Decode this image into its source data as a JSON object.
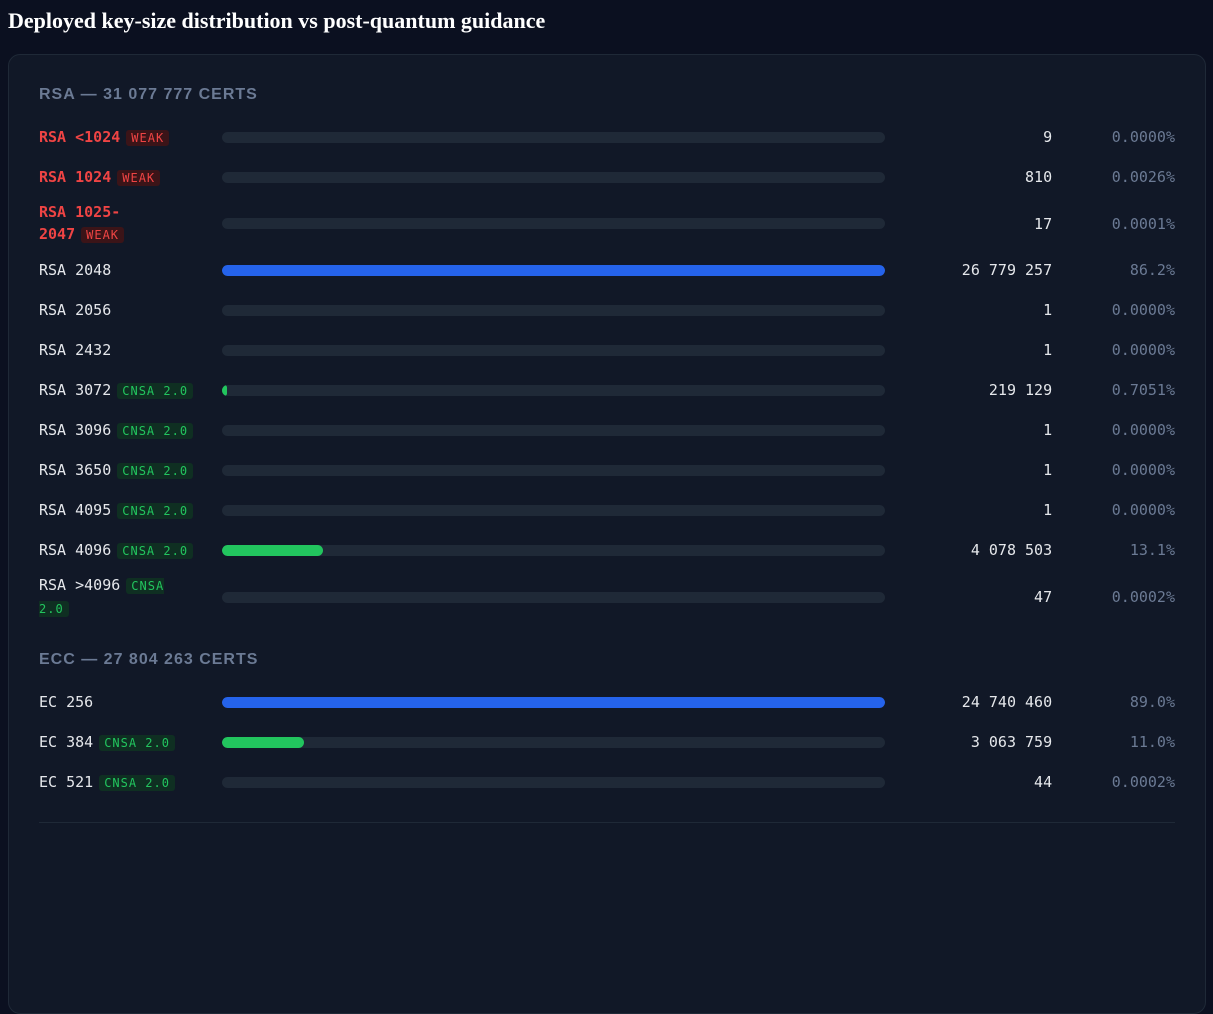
{
  "title": "Deployed key-size distribution vs post-quantum guidance",
  "sections": [
    {
      "heading": "RSA — 31 077 777 CERTS",
      "rows": [
        {
          "label": "RSA <1024",
          "badge": "WEAK",
          "count": 9,
          "count_label": "9",
          "percent": "0.0000%"
        },
        {
          "label": "RSA 1024",
          "badge": "WEAK",
          "count": 810,
          "count_label": "810",
          "percent": "0.0026%"
        },
        {
          "label": "RSA 1025-2047",
          "badge": "WEAK",
          "count": 17,
          "count_label": "17",
          "percent": "0.0001%"
        },
        {
          "label": "RSA 2048",
          "count": 26779257,
          "count_label": "26 779 257",
          "percent": "86.2%",
          "color": "#2563eb"
        },
        {
          "label": "RSA 2056",
          "count": 1,
          "count_label": "1",
          "percent": "0.0000%"
        },
        {
          "label": "RSA 2432",
          "count": 1,
          "count_label": "1",
          "percent": "0.0000%"
        },
        {
          "label": "RSA 3072",
          "badge": "CNSA 2.0",
          "count": 219129,
          "count_label": "219 129",
          "percent": "0.7051%",
          "color": "#22c55e"
        },
        {
          "label": "RSA 3096",
          "badge": "CNSA 2.0",
          "count": 1,
          "count_label": "1",
          "percent": "0.0000%",
          "color": "#22c55e"
        },
        {
          "label": "RSA 3650",
          "badge": "CNSA 2.0",
          "count": 1,
          "count_label": "1",
          "percent": "0.0000%",
          "color": "#22c55e"
        },
        {
          "label": "RSA 4095",
          "badge": "CNSA 2.0",
          "count": 1,
          "count_label": "1",
          "percent": "0.0000%",
          "color": "#22c55e"
        },
        {
          "label": "RSA 4096",
          "badge": "CNSA 2.0",
          "count": 4078503,
          "count_label": "4 078 503",
          "percent": "13.1%",
          "color": "#22c55e"
        },
        {
          "label": "RSA >4096",
          "badge": "CNSA 2.0",
          "count": 47,
          "count_label": "47",
          "percent": "0.0002%",
          "color": "#22c55e"
        }
      ]
    },
    {
      "heading": "ECC — 27 804 263 CERTS",
      "rows": [
        {
          "label": "EC 256",
          "count": 24740460,
          "count_label": "24 740 460",
          "percent": "89.0%",
          "color": "#2563eb"
        },
        {
          "label": "EC 384",
          "badge": "CNSA 2.0",
          "count": 3063759,
          "count_label": "3 063 759",
          "percent": "11.0%",
          "color": "#22c55e"
        },
        {
          "label": "EC 521",
          "badge": "CNSA 2.0",
          "count": 44,
          "count_label": "44",
          "percent": "0.0002%",
          "color": "#22c55e"
        }
      ]
    }
  ]
}
